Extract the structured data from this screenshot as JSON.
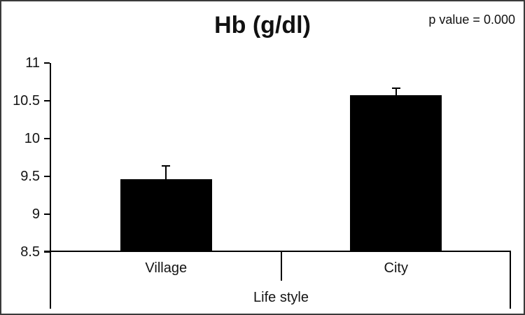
{
  "title": "Hb (g/dl)",
  "annotation": "p value = 0.000",
  "chart_data": {
    "type": "bar",
    "title": "Hb (g/dl)",
    "annotation": "p value = 0.000",
    "categories": [
      "Village",
      "City"
    ],
    "values": [
      9.46,
      10.57
    ],
    "errors_plus": [
      0.18,
      0.1
    ],
    "xlabel": "Life style",
    "ylabel": "",
    "ylim": [
      8.5,
      11
    ],
    "yticks": [
      "8.5",
      "9",
      "9.5",
      "10",
      "10.5",
      "11"
    ],
    "bar_color": "#000000",
    "axis_color": "#000000",
    "grid": false,
    "legend": false
  }
}
